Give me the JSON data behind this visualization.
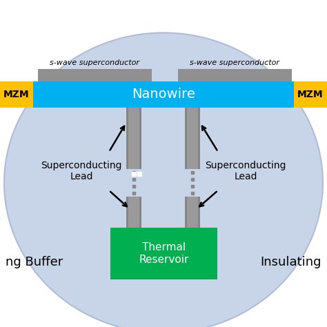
{
  "bg_color": "#ffffff",
  "ellipse_fill": "#c8d4e8",
  "ellipse_edge": "#b0bcd8",
  "nanowire_color": "#00b0f0",
  "nanowire_text": "Nanowire",
  "nanowire_text_color": "white",
  "mzm_color": "#ffc000",
  "mzm_text": "MZM",
  "mzm_text_color": "black",
  "superconductor_color": "#909090",
  "superconductor_text": "s-wave superconductor",
  "lead_color": "#9a9a9a",
  "thermal_color": "#00b050",
  "thermal_text": "Thermal\nReservoir",
  "thermal_text_color": "white",
  "sc_lead_text": "Superconducting\nLead",
  "insulating_text": "Insulating",
  "buffer_text": "ng Buffer",
  "fig_width": 4.74,
  "fig_height": 4.74,
  "dpi": 100
}
